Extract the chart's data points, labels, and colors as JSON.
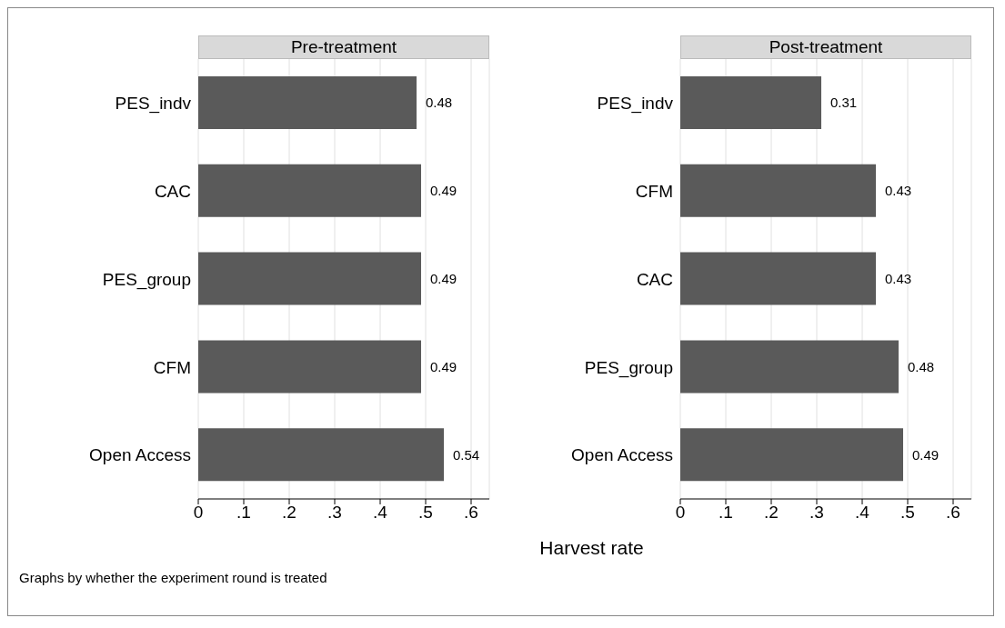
{
  "chart_data": [
    {
      "type": "bar",
      "orientation": "horizontal",
      "title": "Pre-treatment",
      "categories": [
        "PES_indv",
        "CAC",
        "PES_group",
        "CFM",
        "Open Access"
      ],
      "values": [
        0.48,
        0.49,
        0.49,
        0.49,
        0.54
      ],
      "color": "#5a5a5a",
      "data_labels": true,
      "xlim": [
        0,
        0.64
      ],
      "xticks": [
        0,
        {
          "value": 0.1,
          "label": ".1"
        },
        {
          "value": 0.2,
          "label": ".2"
        },
        {
          "value": 0.3,
          "label": ".3"
        },
        {
          "value": 0.4,
          "label": ".4"
        },
        {
          "value": 0.5,
          "label": ".5"
        },
        {
          "value": 0.6,
          "label": ".6"
        }
      ],
      "grid": "x",
      "xlabel": "Harvest rate",
      "annotations": [
        "Graphs by whether the experiment round is treated"
      ]
    },
    {
      "type": "bar",
      "orientation": "horizontal",
      "title": "Post-treatment",
      "categories": [
        "PES_indv",
        "CFM",
        "CAC",
        "PES_group",
        "Open Access"
      ],
      "values": [
        0.31,
        0.43,
        0.43,
        0.48,
        0.49
      ],
      "color": "#5a5a5a",
      "data_labels": true,
      "xlim": [
        0,
        0.64
      ],
      "xticks": [
        0,
        {
          "value": 0.1,
          "label": ".1"
        },
        {
          "value": 0.2,
          "label": ".2"
        },
        {
          "value": 0.3,
          "label": ".3"
        },
        {
          "value": 0.4,
          "label": ".4"
        },
        {
          "value": 0.5,
          "label": ".5"
        },
        {
          "value": 0.6,
          "label": ".6"
        }
      ],
      "grid": "x"
    }
  ]
}
